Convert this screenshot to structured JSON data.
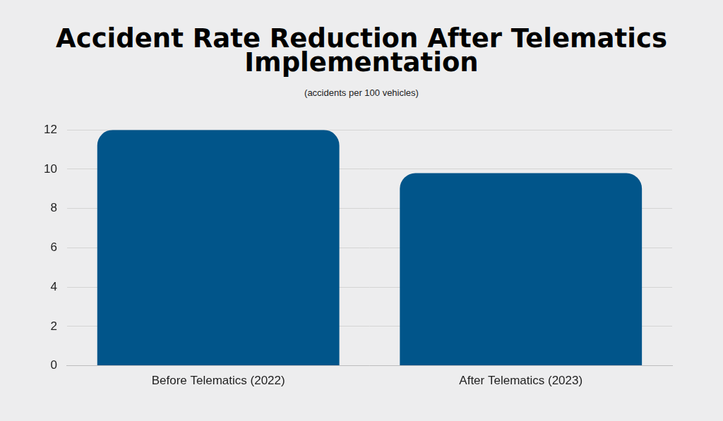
{
  "chart_data": {
    "type": "bar",
    "title": "Accident Rate Reduction After Telematics Implementation",
    "subtitle": "(accidents per 100 vehicles)",
    "categories": [
      "Before Telematics (2022)",
      "After Telematics (2023)"
    ],
    "values": [
      12,
      9.8
    ],
    "color": "#01558a",
    "ylim": [
      0,
      12
    ],
    "yticks": [
      0,
      2,
      4,
      6,
      8,
      10,
      12
    ],
    "grid": true
  }
}
